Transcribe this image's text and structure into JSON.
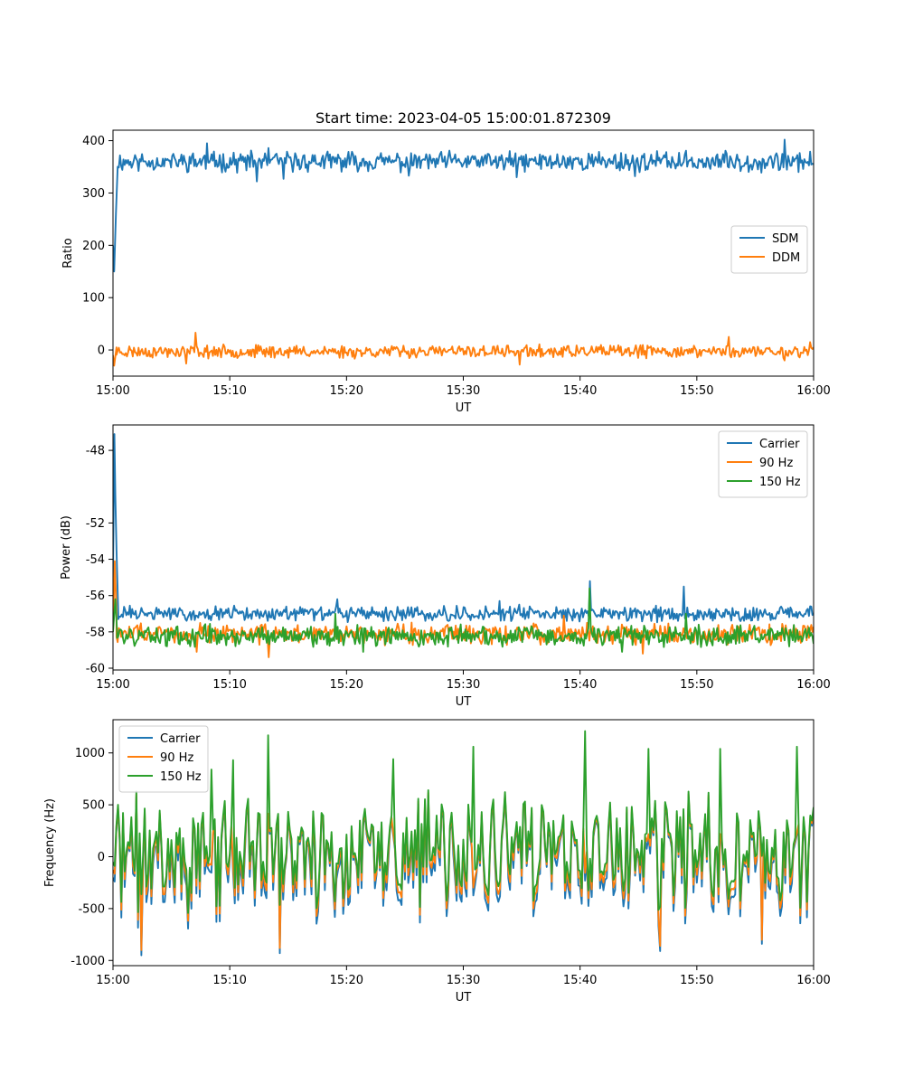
{
  "colors": {
    "c0": "#1f77b4",
    "c1": "#ff7f0e",
    "c2": "#2ca02c"
  },
  "chart_data": [
    {
      "type": "line",
      "title": "Start time: 2023-04-05 15:00:01.872309",
      "xlabel": "UT",
      "ylabel": "Ratio",
      "xlim": [
        0,
        60
      ],
      "xticks": [
        "15:00",
        "15:10",
        "15:20",
        "15:30",
        "15:40",
        "15:50",
        "16:00"
      ],
      "ylim": [
        -50,
        420
      ],
      "yticks": [
        0,
        100,
        200,
        300,
        400
      ],
      "legend_position": "center-right",
      "grid": false,
      "series": [
        {
          "name": "SDM",
          "color": "#1f77b4",
          "start": [
            [
              0,
              200
            ],
            [
              0.1,
              150
            ],
            [
              0.25,
              260
            ],
            [
              0.4,
              350
            ]
          ],
          "base": 360,
          "amp": 14,
          "count": 600,
          "seed": 11,
          "spikes": [
            [
              8,
              395
            ],
            [
              12.3,
              322
            ],
            [
              13.3,
              386
            ],
            [
              14.6,
              327
            ],
            [
              25.3,
              333
            ],
            [
              34.6,
              330
            ],
            [
              44.7,
              332
            ],
            [
              57.5,
              402
            ],
            [
              58.7,
              340
            ]
          ]
        },
        {
          "name": "DDM",
          "color": "#ff7f0e",
          "start": [
            [
              0,
              -10
            ],
            [
              0.1,
              -30
            ],
            [
              0.3,
              5
            ]
          ],
          "base": -3,
          "amp": 9,
          "count": 600,
          "seed": 23,
          "spikes": [
            [
              7.1,
              33
            ],
            [
              6.3,
              -26
            ],
            [
              34.8,
              -28
            ],
            [
              52.7,
              25
            ],
            [
              57.5,
              -20
            ],
            [
              59.7,
              15
            ]
          ]
        }
      ]
    },
    {
      "type": "line",
      "xlabel": "UT",
      "ylabel": "Power (dB)",
      "xlim": [
        0,
        60
      ],
      "xticks": [
        "15:00",
        "15:10",
        "15:20",
        "15:30",
        "15:40",
        "15:50",
        "16:00"
      ],
      "ylim": [
        -60.1,
        -46.6
      ],
      "yticks": [
        -60,
        -58,
        -56,
        -54,
        -52,
        -48
      ],
      "legend_position": "top-right",
      "grid": false,
      "series": [
        {
          "name": "Carrier",
          "color": "#1f77b4",
          "start": [
            [
              0,
              -55
            ],
            [
              0.12,
              -47.1
            ],
            [
              0.2,
              -50.5
            ],
            [
              0.3,
              -53.5
            ],
            [
              0.45,
              -57
            ]
          ],
          "base": -57.0,
          "amp": 0.3,
          "count": 600,
          "seed": 31,
          "spikes": [
            [
              40.8,
              -55.2
            ],
            [
              48.9,
              -55.5
            ],
            [
              19.2,
              -56.2
            ],
            [
              33.1,
              -56.3
            ],
            [
              34.8,
              -56.5
            ]
          ]
        },
        {
          "name": "90 Hz",
          "color": "#ff7f0e",
          "start": [
            [
              0,
              -58
            ],
            [
              0.15,
              -54.1
            ],
            [
              0.3,
              -57
            ]
          ],
          "base": -58.1,
          "amp": 0.42,
          "count": 600,
          "seed": 47,
          "spikes": [
            [
              13.3,
              -59.4
            ],
            [
              7.2,
              -59.1
            ],
            [
              45.4,
              -59.2
            ],
            [
              38.6,
              -57.1
            ]
          ]
        },
        {
          "name": "150 Hz",
          "color": "#2ca02c",
          "start": [
            [
              0,
              -58
            ],
            [
              0.2,
              -56.2
            ],
            [
              0.35,
              -58
            ]
          ],
          "base": -58.2,
          "amp": 0.42,
          "count": 600,
          "seed": 59,
          "spikes": [
            [
              40.8,
              -55.6
            ],
            [
              19.0,
              -57.0
            ],
            [
              21.4,
              -59.1
            ],
            [
              43.6,
              -59.1
            ],
            [
              49.1,
              -57.0
            ]
          ]
        }
      ]
    },
    {
      "type": "line",
      "xlabel": "UT",
      "ylabel": "Frequency (Hz)",
      "xlim": [
        0,
        60
      ],
      "xticks": [
        "15:00",
        "15:10",
        "15:20",
        "15:30",
        "15:40",
        "15:50",
        "16:00"
      ],
      "ylim": [
        -1050,
        1320
      ],
      "yticks": [
        -1000,
        -500,
        0,
        500,
        1000
      ],
      "legend_position": "top-left",
      "grid": false,
      "series": [
        {
          "name": "Carrier",
          "color": "#1f77b4",
          "base": 0,
          "amp": 370,
          "count": 420,
          "seed": 71,
          "offset": -60,
          "spikes": [
            [
              2.4,
              -950
            ],
            [
              14.3,
              -930
            ],
            [
              46.9,
              -910
            ],
            [
              55.6,
              -840
            ]
          ]
        },
        {
          "name": "90 Hz",
          "color": "#ff7f0e",
          "base": 0,
          "amp": 370,
          "count": 420,
          "seed": 71,
          "offset": -10,
          "spikes": [
            [
              2.4,
              -900
            ],
            [
              14.3,
              -880
            ],
            [
              46.9,
              -860
            ],
            [
              55.6,
              -800
            ]
          ]
        },
        {
          "name": "150 Hz",
          "color": "#2ca02c",
          "base": 0,
          "amp": 370,
          "count": 420,
          "seed": 71,
          "offset": 40,
          "spikes": [
            [
              13.3,
              1170
            ],
            [
              40.5,
              1210
            ],
            [
              8.5,
              840
            ],
            [
              24.0,
              940
            ],
            [
              30.8,
              1060
            ],
            [
              45.9,
              1040
            ],
            [
              52.0,
              1040
            ],
            [
              58.6,
              1060
            ],
            [
              10.3,
              930
            ]
          ]
        }
      ]
    }
  ]
}
